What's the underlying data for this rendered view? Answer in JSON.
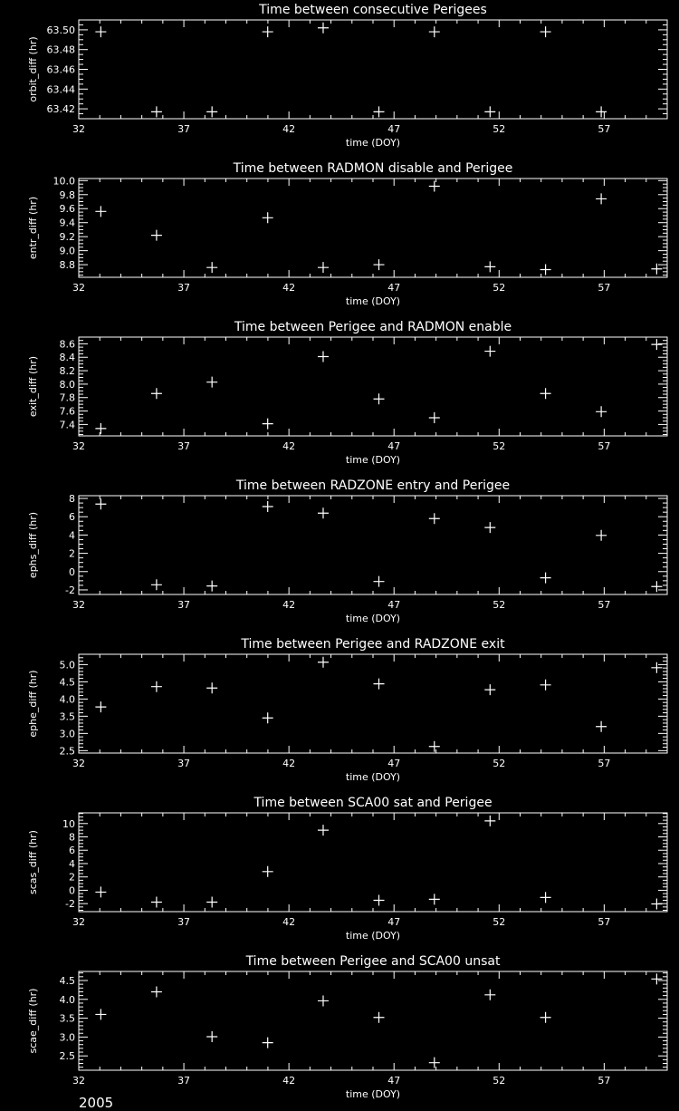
{
  "chart_data": [
    {
      "type": "scatter",
      "title": "Time between consecutive Perigees",
      "xlabel": "time (DOY)",
      "ylabel": "orbit_diff (hr)",
      "xlim": [
        32,
        60
      ],
      "ylim": [
        63.41,
        63.51
      ],
      "xticks": [
        32,
        37,
        42,
        47,
        52,
        57
      ],
      "yticks": [
        63.42,
        63.44,
        63.46,
        63.48,
        63.5
      ],
      "ytick_labels": [
        "63.42",
        "63.44",
        "63.46",
        "63.48",
        "63.50"
      ],
      "yminor": 0.005,
      "x": [
        33.05,
        35.7,
        38.34,
        40.99,
        43.63,
        46.28,
        48.92,
        51.57,
        54.21,
        56.86
      ],
      "y": [
        63.498,
        63.417,
        63.417,
        63.498,
        63.502,
        63.417,
        63.498,
        63.417,
        63.498,
        63.417
      ]
    },
    {
      "type": "scatter",
      "title": "Time between RADMON disable and Perigee",
      "xlabel": "time (DOY)",
      "ylabel": "entr_diff (hr)",
      "xlim": [
        32,
        60
      ],
      "ylim": [
        8.62,
        10.03
      ],
      "xticks": [
        32,
        37,
        42,
        47,
        52,
        57
      ],
      "yticks": [
        8.8,
        9.0,
        9.2,
        9.4,
        9.6,
        9.8,
        10.0
      ],
      "ytick_labels": [
        "8.8",
        "9.0",
        "9.2",
        "9.4",
        "9.6",
        "9.8",
        "10.0"
      ],
      "yminor": 0.05,
      "x": [
        33.05,
        35.7,
        38.34,
        40.99,
        43.63,
        46.28,
        48.92,
        51.57,
        54.21,
        56.86,
        59.5
      ],
      "y": [
        9.56,
        9.22,
        8.76,
        9.47,
        8.76,
        8.8,
        9.92,
        8.77,
        8.73,
        9.74,
        8.74
      ]
    },
    {
      "type": "scatter",
      "title": "Time between Perigee and RADMON enable",
      "xlabel": "time (DOY)",
      "ylabel": "exit_diff (hr)",
      "xlim": [
        32,
        60
      ],
      "ylim": [
        7.23,
        8.7
      ],
      "xticks": [
        32,
        37,
        42,
        47,
        52,
        57
      ],
      "yticks": [
        7.4,
        7.6,
        7.8,
        8.0,
        8.2,
        8.4,
        8.6
      ],
      "ytick_labels": [
        "7.4",
        "7.6",
        "7.8",
        "8.0",
        "8.2",
        "8.4",
        "8.6"
      ],
      "yminor": 0.05,
      "x": [
        33.05,
        35.7,
        38.34,
        40.99,
        43.63,
        46.28,
        48.92,
        51.57,
        54.21,
        56.86,
        59.5
      ],
      "y": [
        7.34,
        7.86,
        8.03,
        7.41,
        8.41,
        7.78,
        7.5,
        8.49,
        7.86,
        7.59,
        8.59
      ]
    },
    {
      "type": "scatter",
      "title": "Time between RADZONE entry and Perigee",
      "xlabel": "time (DOY)",
      "ylabel": "ephs_diff (hr)",
      "xlim": [
        32,
        60
      ],
      "ylim": [
        -2.5,
        8.3
      ],
      "xticks": [
        32,
        37,
        42,
        47,
        52,
        57
      ],
      "yticks": [
        -2,
        0,
        2,
        4,
        6,
        8
      ],
      "ytick_labels": [
        "-2",
        "0",
        "2",
        "4",
        "6",
        "8"
      ],
      "yminor": 0.5,
      "x": [
        33.05,
        35.7,
        38.34,
        40.99,
        43.63,
        46.28,
        48.92,
        51.57,
        54.21,
        56.86,
        59.5
      ],
      "y": [
        7.38,
        -1.44,
        -1.57,
        7.11,
        6.39,
        -1.08,
        5.8,
        4.82,
        -0.68,
        3.96,
        -1.63
      ]
    },
    {
      "type": "scatter",
      "title": "Time between Perigee and RADZONE exit",
      "xlabel": "time (DOY)",
      "ylabel": "ephe_diff (hr)",
      "xlim": [
        32,
        60
      ],
      "ylim": [
        2.43,
        5.3
      ],
      "xticks": [
        32,
        37,
        42,
        47,
        52,
        57
      ],
      "yticks": [
        2.5,
        3.0,
        3.5,
        4.0,
        4.5,
        5.0
      ],
      "ytick_labels": [
        "2.5",
        "3.0",
        "3.5",
        "4.0",
        "4.5",
        "5.0"
      ],
      "yminor": 0.1,
      "x": [
        33.05,
        35.7,
        38.34,
        40.99,
        43.63,
        46.28,
        48.92,
        51.57,
        54.21,
        56.86,
        59.5
      ],
      "y": [
        3.77,
        4.36,
        4.32,
        3.45,
        5.07,
        4.44,
        2.62,
        4.27,
        4.41,
        3.2,
        4.91
      ]
    },
    {
      "type": "scatter",
      "title": "Time between SCA00 sat and Perigee",
      "xlabel": "time (DOY)",
      "ylabel": "scas_diff (hr)",
      "xlim": [
        32,
        60
      ],
      "ylim": [
        -3.2,
        11.6
      ],
      "xticks": [
        32,
        37,
        42,
        47,
        52,
        57
      ],
      "yticks": [
        -2,
        0,
        2,
        4,
        6,
        8,
        10
      ],
      "ytick_labels": [
        "-2",
        "0",
        "2",
        "4",
        "6",
        "8",
        "10"
      ],
      "yminor": 0.5,
      "x": [
        33.05,
        35.7,
        38.34,
        40.99,
        43.63,
        46.28,
        48.92,
        51.57,
        54.21,
        59.5
      ],
      "y": [
        -0.27,
        -1.77,
        -1.77,
        2.8,
        9.0,
        -1.5,
        -1.35,
        10.4,
        -1.08,
        -2.05
      ]
    },
    {
      "type": "scatter",
      "title": "Time between Perigee and SCA00 unsat",
      "xlabel": "time (DOY)",
      "ylabel": "scae_diff (hr)",
      "xlim": [
        32,
        60
      ],
      "ylim": [
        2.12,
        4.74
      ],
      "xticks": [
        32,
        37,
        42,
        47,
        52,
        57
      ],
      "yticks": [
        2.5,
        3.0,
        3.5,
        4.0,
        4.5
      ],
      "ytick_labels": [
        "2.5",
        "3.0",
        "3.5",
        "4.0",
        "4.5"
      ],
      "yminor": 0.1,
      "x": [
        33.05,
        35.7,
        38.34,
        40.99,
        43.63,
        46.28,
        48.92,
        51.57,
        54.21,
        59.5
      ],
      "y": [
        3.6,
        4.2,
        3.01,
        2.85,
        3.96,
        3.52,
        2.32,
        4.12,
        3.52,
        4.54
      ]
    }
  ],
  "footer": {
    "year": "2005"
  },
  "colors": {
    "background": "#000000",
    "foreground": "#ffffff"
  }
}
